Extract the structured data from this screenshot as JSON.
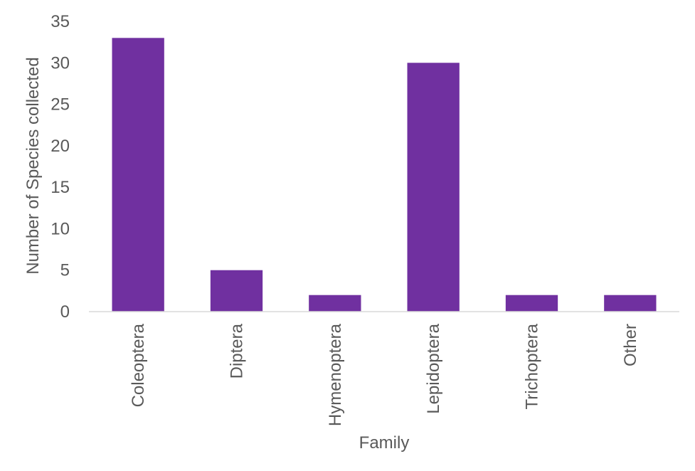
{
  "chart_data": {
    "type": "bar",
    "categories": [
      "Coleoptera",
      "Diptera",
      "Hymenoptera",
      "Lepidoptera",
      "Trichoptera",
      "Other"
    ],
    "values": [
      33,
      5,
      2,
      30,
      2,
      2
    ],
    "title": "",
    "xlabel": "Family",
    "ylabel": "Number of Species collected",
    "ylim": [
      0,
      35
    ],
    "yticks": [
      0,
      5,
      10,
      15,
      20,
      25,
      30,
      35
    ],
    "grid": false,
    "legend": "none",
    "bar_color": "#7030A0",
    "axis_color": "#D9D9D9",
    "text_color": "#595959"
  }
}
